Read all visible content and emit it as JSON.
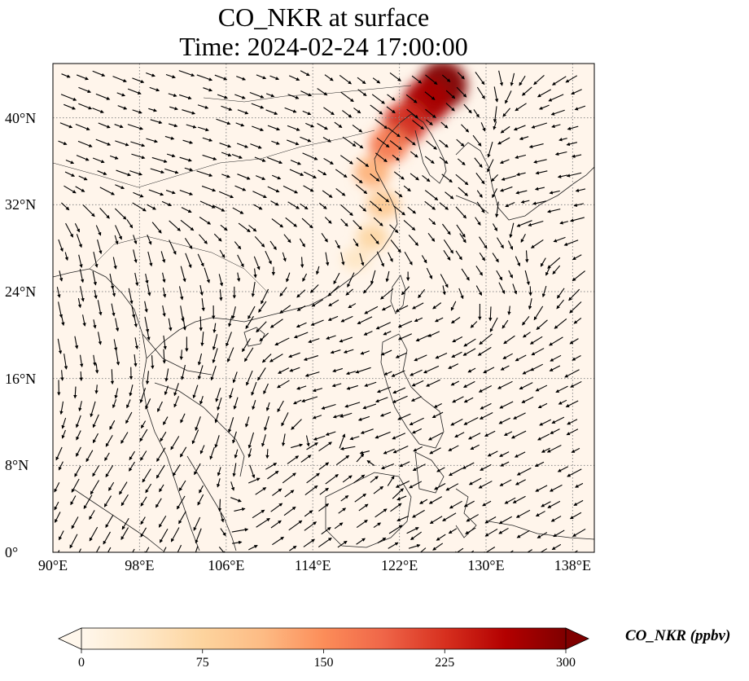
{
  "title": {
    "line1": "CO_NKR at surface",
    "line2": "Time: 2024-02-24 17:00:00"
  },
  "map": {
    "projection": "PlateCarree",
    "lon_range": [
      90,
      140
    ],
    "lat_range": [
      0,
      45
    ],
    "gridlines": "dotted",
    "lon_ticks": [
      90,
      98,
      106,
      114,
      122,
      130,
      138
    ],
    "lat_ticks": [
      0,
      8,
      16,
      24,
      32,
      40
    ],
    "lon_tick_labels": [
      "90°E",
      "98°E",
      "106°E",
      "114°E",
      "122°E",
      "130°E",
      "138°E"
    ],
    "lat_tick_labels": [
      "0°",
      "8°N",
      "16°N",
      "24°N",
      "32°N",
      "40°N"
    ],
    "background_color": "#fff5eb",
    "vector_color": "#000000"
  },
  "colorbar": {
    "label": "CO_NKR (ppbv)",
    "min": 0,
    "max": 300,
    "extend": "both",
    "colormap": "OrRd",
    "tick_values": [
      0,
      75,
      150,
      225,
      300
    ],
    "tick_labels": [
      "0",
      "75",
      "150",
      "225",
      "300"
    ],
    "colors": [
      "#fff7ec",
      "#fee8c8",
      "#fdd49e",
      "#fdbb84",
      "#fc8d59",
      "#ef6548",
      "#d7301f",
      "#b30000",
      "#7f0000"
    ]
  },
  "chart_data": {
    "type": "heatmap",
    "variable": "CO_NKR",
    "units": "ppbv",
    "plumes": [
      {
        "lon": 126.0,
        "lat": 43.0,
        "value": 300
      },
      {
        "lon": 124.5,
        "lat": 41.5,
        "value": 270
      },
      {
        "lon": 122.5,
        "lat": 39.5,
        "value": 230
      },
      {
        "lon": 121.0,
        "lat": 37.5,
        "value": 170
      },
      {
        "lon": 119.5,
        "lat": 35.0,
        "value": 120
      },
      {
        "lon": 120.5,
        "lat": 32.0,
        "value": 90
      },
      {
        "lon": 119.5,
        "lat": 29.0,
        "value": 70
      },
      {
        "lon": 118.0,
        "lat": 27.0,
        "value": 40
      }
    ],
    "wind_field": [
      {
        "lon": 93,
        "lat": 42,
        "u": 1.0,
        "v": -0.4
      },
      {
        "lon": 100,
        "lat": 38,
        "u": 1.0,
        "v": -0.3
      },
      {
        "lon": 110,
        "lat": 40,
        "u": 0.8,
        "v": -0.3
      },
      {
        "lon": 118,
        "lat": 42,
        "u": 0.8,
        "v": -0.6
      },
      {
        "lon": 124,
        "lat": 34,
        "u": 0.9,
        "v": -0.7
      },
      {
        "lon": 128,
        "lat": 28,
        "u": 0.6,
        "v": -0.9
      },
      {
        "lon": 124,
        "lat": 20,
        "u": -0.9,
        "v": -0.4
      },
      {
        "lon": 116,
        "lat": 16,
        "u": -1.0,
        "v": -0.3
      },
      {
        "lon": 108,
        "lat": 12,
        "u": -0.3,
        "v": -1.0
      },
      {
        "lon": 112,
        "lat": 6,
        "u": 0.8,
        "v": 0.6
      },
      {
        "lon": 100,
        "lat": 8,
        "u": -0.5,
        "v": -0.8
      },
      {
        "lon": 134,
        "lat": 14,
        "u": -1.0,
        "v": -0.5
      },
      {
        "lon": 136,
        "lat": 34,
        "u": -0.9,
        "v": -0.2
      },
      {
        "lon": 96,
        "lat": 24,
        "u": 0.2,
        "v": -1.0
      }
    ]
  }
}
